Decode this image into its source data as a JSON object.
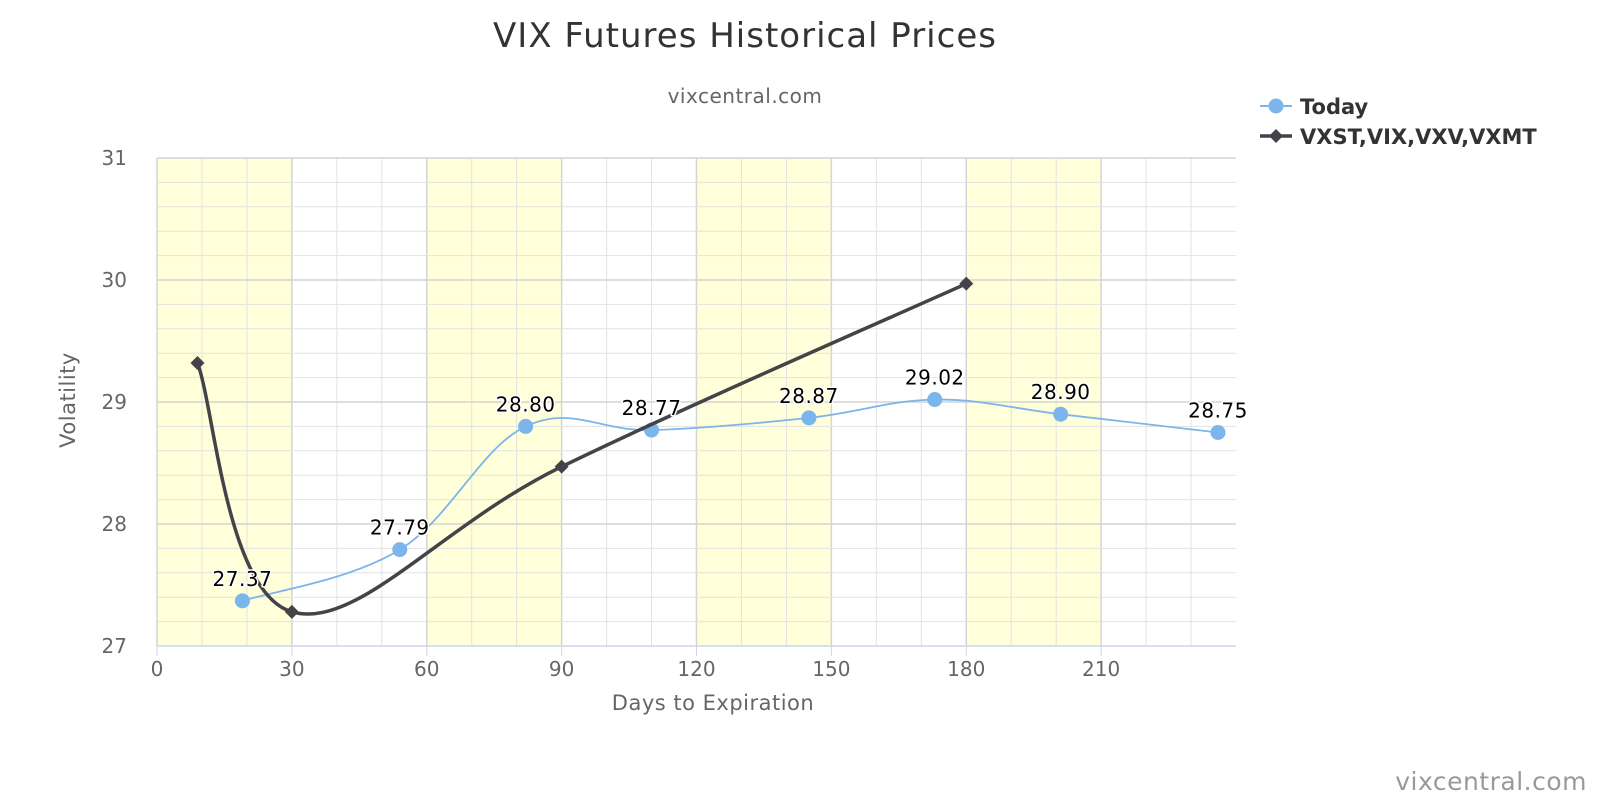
{
  "chart_data": {
    "type": "line",
    "title": "VIX Futures Historical Prices",
    "subtitle": "vixcentral.com",
    "xlabel": "Days to Expiration",
    "ylabel": "Volatility",
    "xlim": [
      0,
      240
    ],
    "ylim": [
      27,
      31
    ],
    "x_ticks": [
      0,
      30,
      60,
      90,
      120,
      150,
      180,
      210
    ],
    "y_ticks": [
      27,
      28,
      29,
      30,
      31
    ],
    "grid": true,
    "legend_position": "top-right",
    "plot_bands_x": [
      [
        0,
        30
      ],
      [
        60,
        90
      ],
      [
        120,
        150
      ],
      [
        180,
        210
      ]
    ],
    "band_color": "#FFFFD9",
    "series": [
      {
        "name": "Today",
        "color": "#7CB5EC",
        "marker": "circle",
        "smooth": true,
        "x": [
          19,
          54,
          82,
          110,
          145,
          173,
          201,
          236
        ],
        "values": [
          27.37,
          27.79,
          28.8,
          28.77,
          28.87,
          29.02,
          28.9,
          28.75
        ],
        "labels": [
          "27.37",
          "27.79",
          "28.80",
          "28.77",
          "28.87",
          "29.02",
          "28.90",
          "28.75"
        ]
      },
      {
        "name": "VXST,VIX,VXV,VXMT",
        "color": "#434348",
        "marker": "diamond",
        "smooth": true,
        "x": [
          9,
          30,
          90,
          180
        ],
        "values": [
          29.32,
          27.28,
          28.47,
          29.97
        ]
      }
    ]
  },
  "credit": "vixcentral.com"
}
